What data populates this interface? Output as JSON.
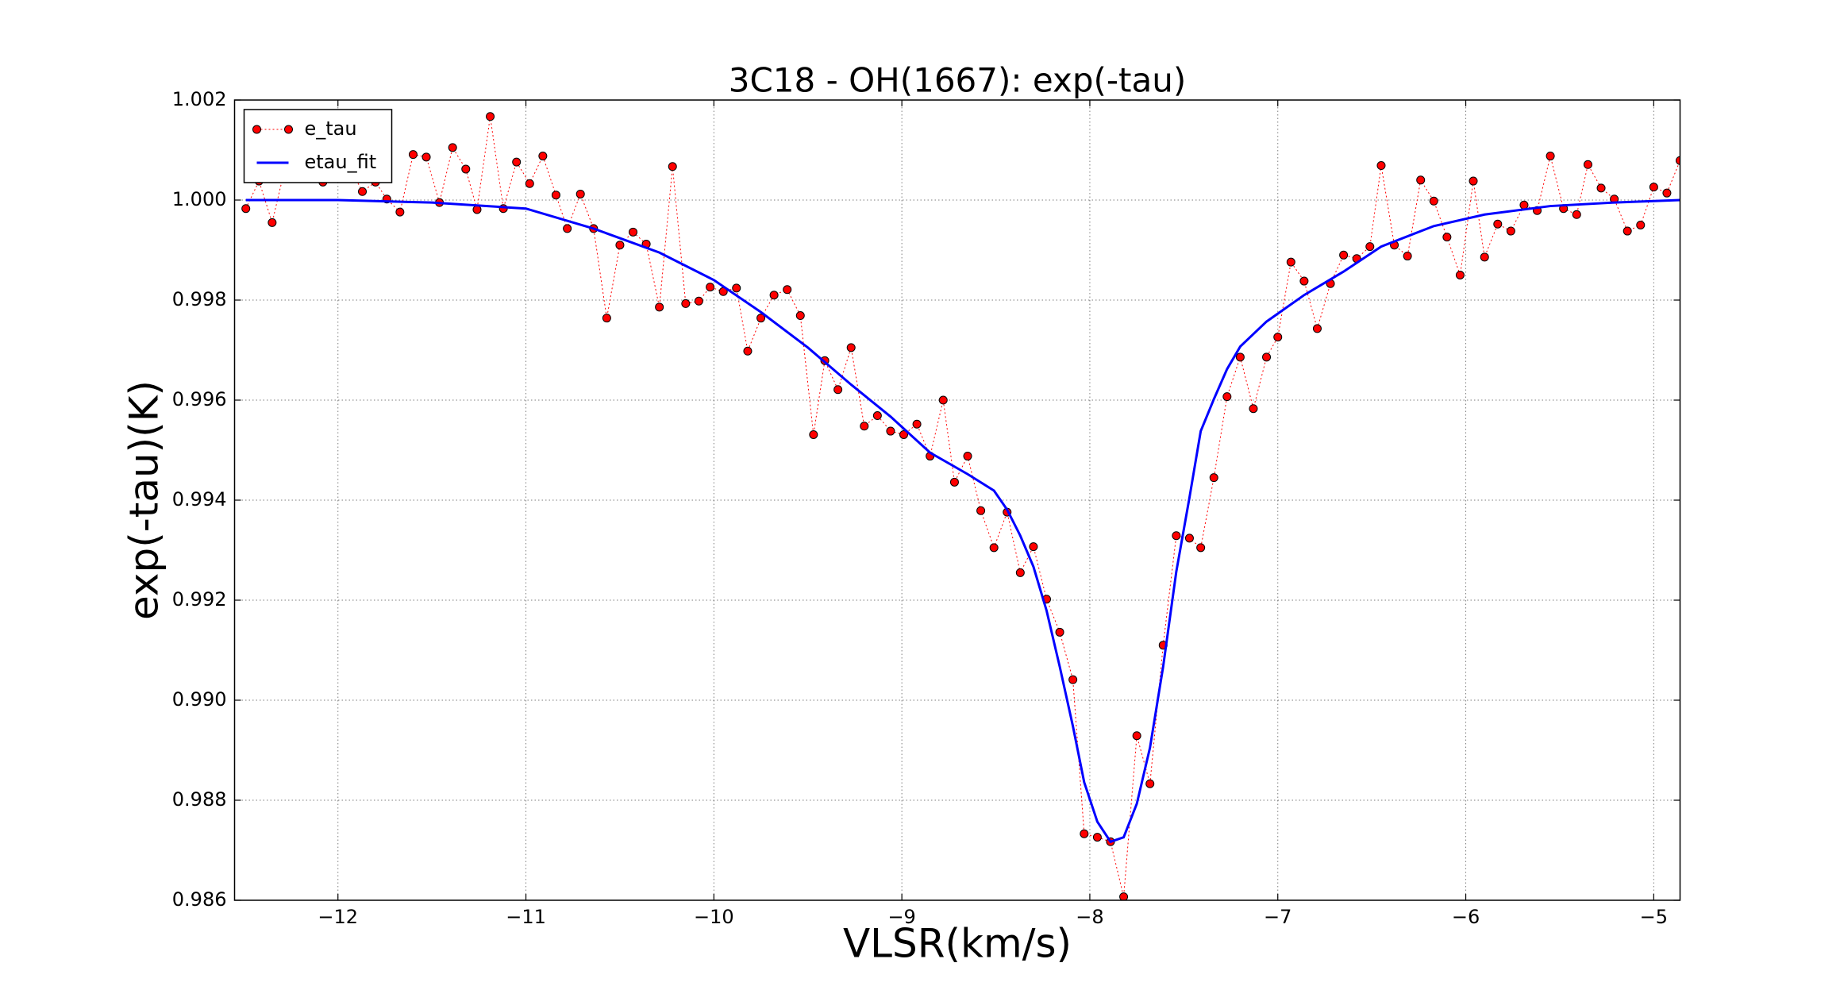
{
  "chart_data": {
    "type": "line",
    "title": "3C18 - OH(1667): exp(-tau)",
    "xlabel": "VLSR(km/s)",
    "ylabel": "exp(-tau)(K)",
    "xlim": [
      -12.55,
      -4.86
    ],
    "ylim": [
      0.986,
      1.002
    ],
    "xticks": [
      {
        "value": -12,
        "label": "−12"
      },
      {
        "value": -11,
        "label": "−11"
      },
      {
        "value": -10,
        "label": "−10"
      },
      {
        "value": -9,
        "label": "−9"
      },
      {
        "value": -8,
        "label": "−8"
      },
      {
        "value": -7,
        "label": "−7"
      },
      {
        "value": -6,
        "label": "−6"
      },
      {
        "value": -5,
        "label": "−5"
      }
    ],
    "yticks": [
      0.986,
      0.988,
      {
        "value": 0.99,
        "label": "0.990"
      },
      0.992,
      0.994,
      0.996,
      0.998,
      {
        "value": 1,
        "label": "1.000"
      },
      1.002
    ],
    "grid": true,
    "legend": "upper left",
    "series": [
      {
        "name": "e_tau",
        "color": "#ff0000",
        "style": "dotted-markers",
        "x": [
          -12.49,
          -12.42,
          -12.35,
          -12.28,
          -12.22,
          -12.15,
          -12.08,
          -12.01,
          -11.94,
          -11.87,
          -11.8,
          -11.74,
          -11.67,
          -11.6,
          -11.53,
          -11.46,
          -11.39,
          -11.32,
          -11.26,
          -11.19,
          -11.12,
          -11.05,
          -10.98,
          -10.91,
          -10.84,
          -10.78,
          -10.71,
          -10.64,
          -10.57,
          -10.5,
          -10.43,
          -10.36,
          -10.29,
          -10.22,
          -10.15,
          -10.08,
          -10.02,
          -9.95,
          -9.88,
          -9.82,
          -9.75,
          -9.68,
          -9.61,
          -9.54,
          -9.47,
          -9.41,
          -9.34,
          -9.27,
          -9.2,
          -9.13,
          -9.06,
          -8.99,
          -8.92,
          -8.85,
          -8.78,
          -8.72,
          -8.65,
          -8.58,
          -8.51,
          -8.44,
          -8.37,
          -8.3,
          -8.23,
          -8.16,
          -8.09,
          -8.03,
          -7.96,
          -7.89,
          -7.82,
          -7.75,
          -7.68,
          -7.61,
          -7.54,
          -7.47,
          -7.41,
          -7.34,
          -7.27,
          -7.2,
          -7.13,
          -7.06,
          -7.0,
          -6.93,
          -6.86,
          -6.79,
          -6.72,
          -6.65,
          -6.58,
          -6.51,
          -6.45,
          -6.38,
          -6.31,
          -6.24,
          -6.17,
          -6.1,
          -6.03,
          -5.96,
          -5.9,
          -5.83,
          -5.76,
          -5.69,
          -5.62,
          -5.55,
          -5.48,
          -5.41,
          -5.35,
          -5.28,
          -5.21,
          -5.14,
          -5.07,
          -5.0,
          -4.93,
          -4.86
        ],
        "values": [
          0.99983,
          1.00038,
          0.99955,
          1.00067,
          1.00052,
          1.00067,
          1.00036,
          1.00048,
          1.00067,
          1.00017,
          1.00036,
          1.00002,
          0.99976,
          1.00091,
          1.00086,
          0.99995,
          1.00105,
          1.00062,
          0.99981,
          1.00167,
          0.99983,
          1.00076,
          1.00033,
          1.00088,
          1.0001,
          0.99943,
          1.00012,
          0.99943,
          0.99764,
          0.9991,
          0.99936,
          0.99912,
          0.99786,
          1.00067,
          0.99793,
          0.99798,
          0.99826,
          0.99817,
          0.99824,
          0.99698,
          0.99764,
          0.9981,
          0.99821,
          0.99769,
          0.99531,
          0.99679,
          0.99621,
          0.99705,
          0.99548,
          0.99569,
          0.99538,
          0.99531,
          0.99552,
          0.99488,
          0.996,
          0.99436,
          0.99488,
          0.99379,
          0.99305,
          0.99376,
          0.99255,
          0.99307,
          0.99202,
          0.99136,
          0.99041,
          0.98733,
          0.98726,
          0.98717,
          0.98607,
          0.98929,
          0.98833,
          0.9911,
          0.99329,
          0.99324,
          0.99305,
          0.99445,
          0.99607,
          0.99686,
          0.99583,
          0.99686,
          0.99726,
          0.99876,
          0.99838,
          0.99743,
          0.99833,
          0.9989,
          0.99883,
          0.99907,
          1.00069,
          0.9991,
          0.99888,
          1.0004,
          0.99998,
          0.99926,
          0.9985,
          1.00038,
          0.99886,
          0.99952,
          0.99938,
          0.9999,
          0.99979,
          1.00088,
          0.99983,
          0.99971,
          1.00071,
          1.00024,
          1.00002,
          0.99938,
          0.9995,
          1.00026,
          1.00014,
          1.00079
        ]
      },
      {
        "name": "etau_fit",
        "color": "#0000ff",
        "style": "solid",
        "x": [
          -12.49,
          -12.0,
          -11.5,
          -11.0,
          -10.64,
          -10.29,
          -10.0,
          -9.75,
          -9.5,
          -9.27,
          -9.06,
          -8.85,
          -8.65,
          -8.51,
          -8.44,
          -8.37,
          -8.3,
          -8.23,
          -8.16,
          -8.09,
          -8.03,
          -7.96,
          -7.89,
          -7.82,
          -7.75,
          -7.68,
          -7.61,
          -7.54,
          -7.47,
          -7.41,
          -7.34,
          -7.27,
          -7.2,
          -7.06,
          -6.86,
          -6.65,
          -6.45,
          -6.17,
          -5.9,
          -5.55,
          -5.21,
          -4.86
        ],
        "values": [
          1.0,
          1.0,
          0.99995,
          0.99983,
          0.99943,
          0.99895,
          0.9984,
          0.99776,
          0.99705,
          0.99631,
          0.99567,
          0.99495,
          0.99452,
          0.99419,
          0.99381,
          0.99329,
          0.99267,
          0.99179,
          0.99067,
          0.98948,
          0.98836,
          0.98757,
          0.98717,
          0.98726,
          0.98793,
          0.98905,
          0.99067,
          0.99257,
          0.99405,
          0.99538,
          0.99602,
          0.99662,
          0.99707,
          0.99757,
          0.9981,
          0.99857,
          0.99907,
          0.99948,
          0.99971,
          0.99988,
          0.99995,
          1.0
        ]
      }
    ]
  }
}
